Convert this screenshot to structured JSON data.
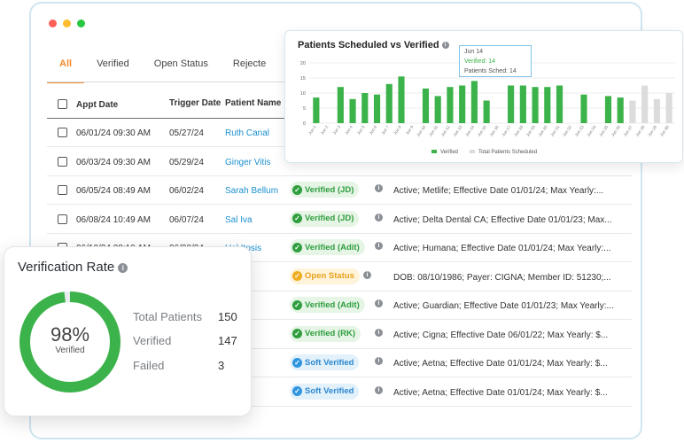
{
  "window": {
    "dots": [
      "#ff5f57",
      "#febc2e",
      "#28c840"
    ],
    "tabs": [
      {
        "label": "All",
        "active": true
      },
      {
        "label": "Verified",
        "active": false
      },
      {
        "label": "Open Status",
        "active": false
      },
      {
        "label": "Rejecte",
        "active": false
      }
    ]
  },
  "table": {
    "headers": {
      "appt": "Appt Date",
      "trigger": "Trigger Date",
      "patient": "Patient Name"
    },
    "rows": [
      {
        "appt": "06/01/24 09:30 AM",
        "trigger": "05/27/24",
        "patient": "Ruth Canal",
        "badge": "",
        "details": ""
      },
      {
        "appt": "06/03/24 09:30 AM",
        "trigger": "05/29/24",
        "patient": "Ginger Vitis",
        "badge": "",
        "details": ""
      },
      {
        "appt": "06/05/24 08:49 AM",
        "trigger": "06/02/24",
        "patient": "Sarah Bellum",
        "badge": "Verified (JD)",
        "details": "Active; Metlife; Effective Date 01/01/24; Max Yearly:..."
      },
      {
        "appt": "06/08/24 10:49 AM",
        "trigger": "06/07/24",
        "patient": "Sal Iva",
        "badge": "Verified (JD)",
        "details": "Active; Delta Dental CA; Effective Date 01/01/23; Max..."
      },
      {
        "appt": "06/10/24 08:10 AM",
        "trigger": "06/08/24",
        "patient": "Hal Itosis",
        "badge": "Verified (Adit)",
        "details": "Active; Humana; Effective Date 01/01/24; Max Yearly:..."
      },
      {
        "appt": "",
        "trigger": "",
        "patient": "mel",
        "badge": "Open Status",
        "details": "DOB: 08/10/1986; Payer: CIGNA; Member ID: 51230;..."
      },
      {
        "appt": "",
        "trigger": "",
        "patient": "ng",
        "badge": "Verified (Adit)",
        "details": "Active; Guardian; Effective Date 01/01/23; Max Yearly:..."
      },
      {
        "appt": "",
        "trigger": "",
        "patient": "re",
        "badge": "Verified (RK)",
        "details": "Active; Cigna; Effective Date 06/01/22; Max Yearly: $..."
      },
      {
        "appt": "",
        "trigger": "",
        "patient": "rs",
        "badge": "Soft Verified",
        "details": "Active; Aetna; Effective Date 01/01/24; Max Yearly: $..."
      },
      {
        "appt": "",
        "trigger": "",
        "patient": "or",
        "badge": "Soft Verified",
        "details": "Active; Aetna; Effective Date 01/01/24; Max Yearly: $..."
      }
    ]
  },
  "chart_card": {
    "title": "Patients Scheduled vs Verified",
    "tooltip": {
      "date": "Jun 14",
      "verified": "Verified: 14",
      "scheduled": "Patients Sched: 14"
    }
  },
  "chart_data": {
    "type": "bar",
    "title": "Patients Scheduled vs Verified",
    "categories": [
      "Jun 1",
      "Jun 2",
      "Jun 3",
      "Jun 4",
      "Jun 5",
      "Jun 6",
      "Jun 7",
      "Jun 8",
      "Jun 9",
      "Jun 10",
      "Jun 11",
      "Jun 12",
      "Jun 13",
      "Jun 14",
      "Jun 15",
      "Jun 16",
      "Jun 17",
      "Jun 18",
      "Jun 19",
      "Jun 20",
      "Jun 21",
      "Jun 22",
      "Jun 23",
      "Jun 24",
      "Jun 25",
      "Jun 26",
      "Jun 27",
      "Jun 28",
      "Jun 29",
      "Jun 30"
    ],
    "yticks": [
      0,
      5,
      10,
      15,
      20
    ],
    "ylim": [
      0,
      20
    ],
    "series": [
      {
        "name": "Verified",
        "color": "#3cb34a",
        "values": [
          8.5,
          0,
          12,
          8,
          10,
          9.5,
          13,
          15.5,
          0,
          11.5,
          9,
          12,
          12.5,
          14,
          7.5,
          0,
          12.5,
          12.5,
          12,
          12,
          12.5,
          0,
          9.5,
          0,
          9,
          8.5,
          0,
          0,
          0,
          0
        ]
      },
      {
        "name": "Total Patients Scheduled",
        "color": "#dcdcdc",
        "values": [
          8.5,
          0,
          12,
          8,
          10,
          9.5,
          13,
          15.5,
          0,
          11.5,
          9,
          12,
          12.5,
          14,
          7.5,
          0,
          12.5,
          12.5,
          12,
          12,
          12.5,
          0,
          9.5,
          0,
          9,
          8.5,
          7.5,
          12.5,
          8,
          10
        ]
      }
    ],
    "grid": true,
    "legend": "bottom"
  },
  "verification": {
    "title": "Verification Rate",
    "percent_label": "98%",
    "percent_value": 98,
    "sub": "Verified",
    "ring_color": "#3cb34a",
    "stats": [
      {
        "label": "Total Patients",
        "value": "150"
      },
      {
        "label": "Verified",
        "value": "147"
      },
      {
        "label": "Failed",
        "value": "3"
      }
    ]
  }
}
